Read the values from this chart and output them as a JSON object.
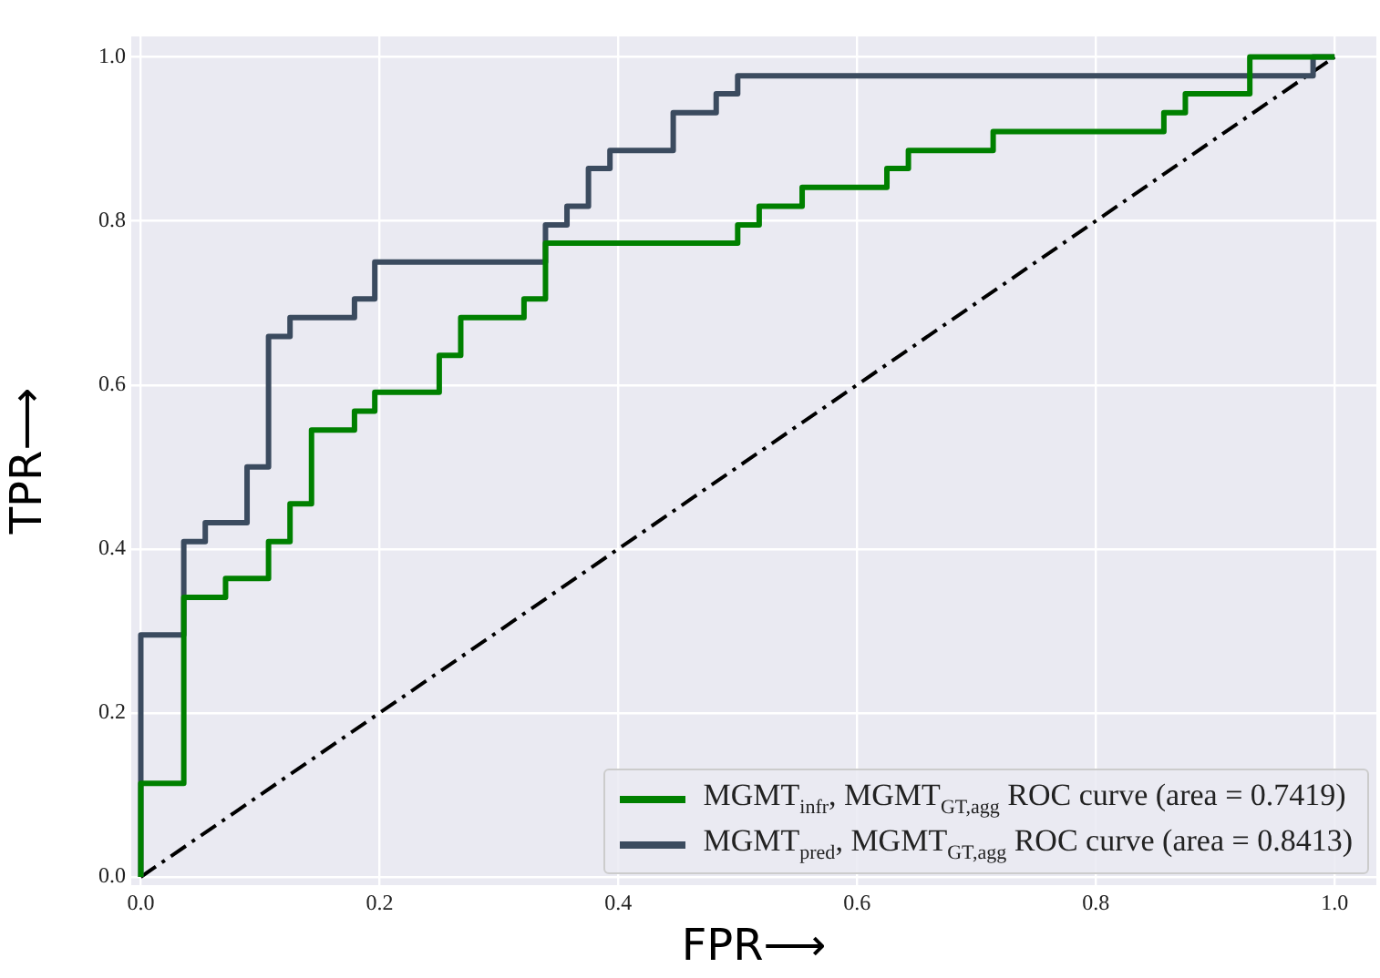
{
  "chart_data": {
    "type": "step",
    "xlabel": "FPR⟶",
    "ylabel": "TPR⟶",
    "xlim": [
      -0.008,
      1.035
    ],
    "ylim": [
      -0.01,
      1.025
    ],
    "xticks": [
      {
        "value": 0,
        "label": "0.0"
      },
      {
        "value": 0.2,
        "label": "0.2"
      },
      {
        "value": 0.4,
        "label": "0.4"
      },
      {
        "value": 0.6,
        "label": "0.6"
      },
      {
        "value": 0.8,
        "label": "0.8"
      },
      {
        "value": 1,
        "label": "1.0"
      }
    ],
    "yticks": [
      {
        "value": 0,
        "label": "0.0"
      },
      {
        "value": 0.2,
        "label": "0.2"
      },
      {
        "value": 0.4,
        "label": "0.4"
      },
      {
        "value": 0.6,
        "label": "0.6"
      },
      {
        "value": 0.8,
        "label": "0.8"
      },
      {
        "value": 1,
        "label": "1.0"
      }
    ],
    "grid": true,
    "legend": "bottom right",
    "marker": "none",
    "series": [
      {
        "name": "MGMT$_{infr}$, MGMT$_{GT,agg}$ ROC curve (area = 0.7419)",
        "color": "#008000",
        "x": [
          0,
          0,
          0.036,
          0.071,
          0.107,
          0.125,
          0.143,
          0.179,
          0.196,
          0.25,
          0.268,
          0.321,
          0.339,
          0.5,
          0.518,
          0.554,
          0.625,
          0.643,
          0.714,
          0.857,
          0.875,
          0.929,
          1
        ],
        "values": [
          0,
          0.114,
          0.341,
          0.364,
          0.409,
          0.455,
          0.545,
          0.568,
          0.591,
          0.636,
          0.682,
          0.705,
          0.773,
          0.795,
          0.818,
          0.841,
          0.864,
          0.886,
          0.909,
          0.932,
          0.955,
          1,
          1
        ]
      },
      {
        "name": "MGMT$_{pred}$, MGMT$_{GT,agg}$ ROC curve (area = 0.8413)",
        "color": "#3b4b5f",
        "x": [
          0,
          0,
          0.036,
          0.054,
          0.089,
          0.107,
          0.125,
          0.179,
          0.196,
          0.339,
          0.357,
          0.375,
          0.393,
          0.446,
          0.482,
          0.5,
          0.982,
          1
        ],
        "values": [
          0,
          0.295,
          0.409,
          0.432,
          0.5,
          0.659,
          0.682,
          0.705,
          0.75,
          0.795,
          0.818,
          0.864,
          0.886,
          0.932,
          0.955,
          0.977,
          1,
          1
        ]
      },
      {
        "type": "line",
        "color": "#000000",
        "line_style": "dashed",
        "x": [
          0,
          1
        ],
        "values": [
          0,
          1
        ]
      }
    ]
  }
}
